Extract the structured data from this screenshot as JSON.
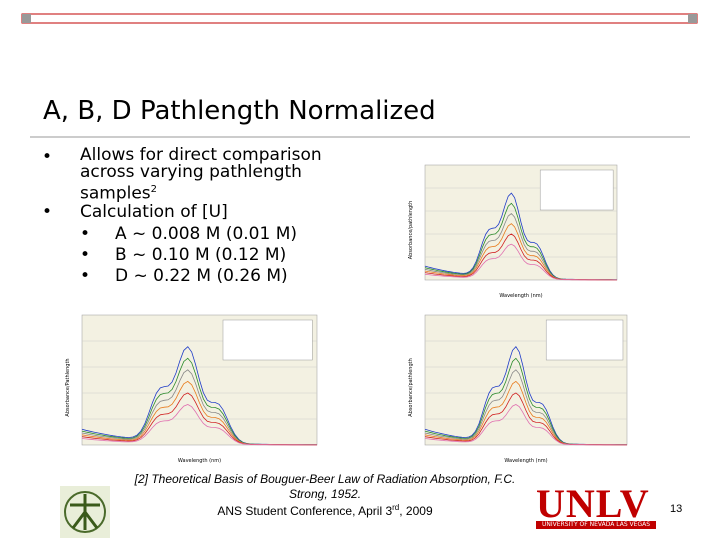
{
  "header": {
    "title": "A, B, D Pathlength Normalized"
  },
  "bullets": [
    {
      "text": "Allows for direct comparison across varying pathlength samples",
      "sup": "2"
    },
    {
      "text": "Calculation of [U]"
    }
  ],
  "sub_bullets": [
    "A ~ 0.008 M (0.01 M)",
    "B ~ 0.10 M (0.12 M)",
    "D ~ 0.22 M (0.26 M)"
  ],
  "figures": [
    {
      "y_label": "Absorbance/pathlength",
      "x_label": "Wavelength (nm)"
    },
    {
      "y_label": "Absorbance/Pathlength",
      "x_label": "Wavelength (nm)"
    },
    {
      "y_label": "Absorbance/pathlength",
      "x_label": "Wavelength (nm)"
    }
  ],
  "footer": {
    "citation_1": "[2] Theoretical Basis of Bouguer-Beer Law of Radiation Absorption, F.C.",
    "citation_2": "Strong, 1952.",
    "conference": "ANS Student Conference, April 3",
    "conference_sup": "rd",
    "conference_end": ", 2009",
    "page": "13"
  },
  "logo": {
    "name": "UNLV",
    "subtitle": "UNIVERSITY OF NEVADA LAS VEGAS"
  }
}
